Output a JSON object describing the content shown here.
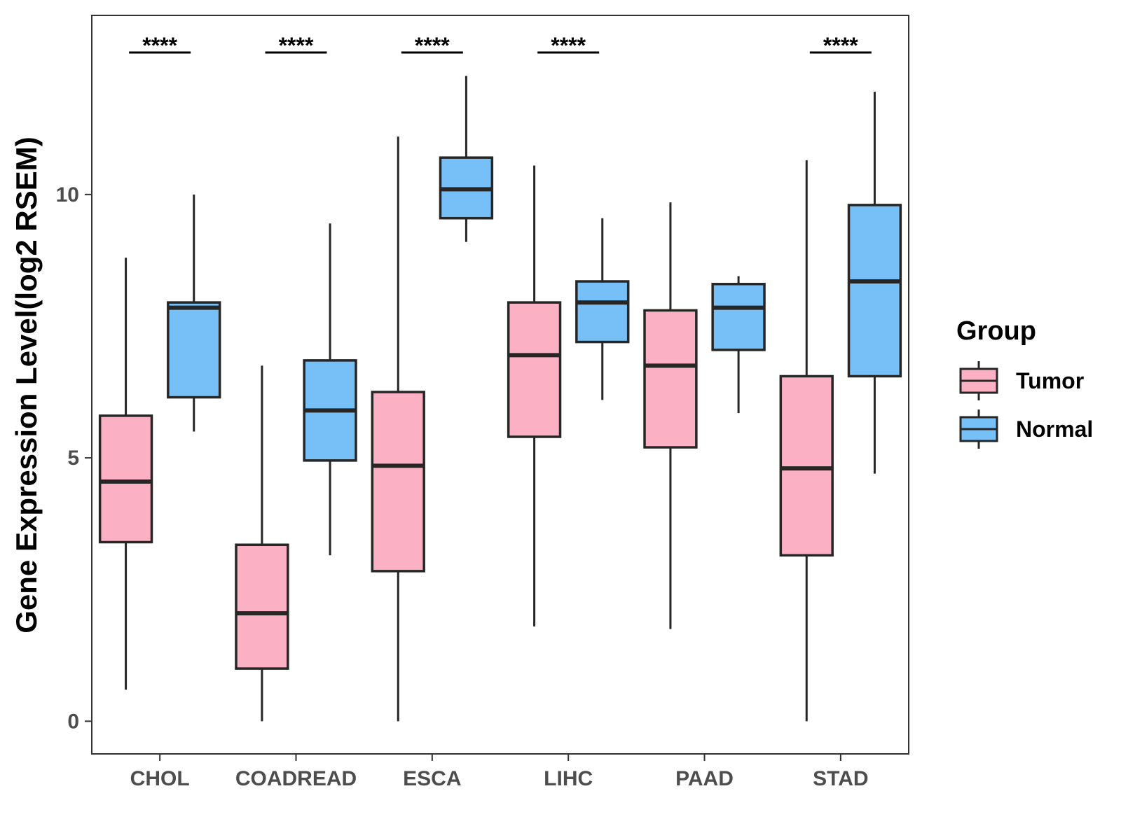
{
  "chart_data": {
    "type": "boxplot",
    "ylabel": "Gene Expression Level(log2 RSEM)",
    "xlabel": "",
    "ylim": [
      -0.62,
      13.4
    ],
    "yticks": [
      0,
      5,
      10
    ],
    "categories": [
      "CHOL",
      "COADREAD",
      "ESCA",
      "LIHC",
      "PAAD",
      "STAD"
    ],
    "legend": {
      "title": "Group",
      "position": "right",
      "entries": [
        {
          "name": "Tumor",
          "color": "#FBB1C3"
        },
        {
          "name": "Normal",
          "color": "#76C0F7"
        }
      ]
    },
    "series": [
      {
        "name": "Tumor",
        "color": "#FBB1C3",
        "boxes": [
          {
            "min": 0.6,
            "q1": 3.4,
            "median": 4.55,
            "q3": 5.8,
            "max": 8.8
          },
          {
            "min": 0.0,
            "q1": 1.0,
            "median": 2.05,
            "q3": 3.35,
            "max": 6.75
          },
          {
            "min": 0.0,
            "q1": 2.85,
            "median": 4.85,
            "q3": 6.25,
            "max": 11.1
          },
          {
            "min": 1.8,
            "q1": 5.4,
            "median": 6.95,
            "q3": 7.95,
            "max": 10.55
          },
          {
            "min": 1.75,
            "q1": 5.2,
            "median": 6.75,
            "q3": 7.8,
            "max": 9.85
          },
          {
            "min": 0.0,
            "q1": 3.15,
            "median": 4.8,
            "q3": 6.55,
            "max": 10.65
          }
        ]
      },
      {
        "name": "Normal",
        "color": "#76C0F7",
        "boxes": [
          {
            "min": 5.5,
            "q1": 6.15,
            "median": 7.85,
            "q3": 7.95,
            "max": 10.0
          },
          {
            "min": 3.15,
            "q1": 4.95,
            "median": 5.9,
            "q3": 6.85,
            "max": 9.45
          },
          {
            "min": 9.1,
            "q1": 9.55,
            "median": 10.1,
            "q3": 10.7,
            "max": 12.25
          },
          {
            "min": 6.1,
            "q1": 7.2,
            "median": 7.95,
            "q3": 8.35,
            "max": 9.55
          },
          {
            "min": 5.85,
            "q1": 7.05,
            "median": 7.85,
            "q3": 8.3,
            "max": 8.45
          },
          {
            "min": 4.7,
            "q1": 6.55,
            "median": 8.35,
            "q3": 9.8,
            "max": 11.95
          }
        ]
      }
    ],
    "significance": [
      {
        "category": "CHOL",
        "label": "****"
      },
      {
        "category": "COADREAD",
        "label": "****"
      },
      {
        "category": "ESCA",
        "label": "****"
      },
      {
        "category": "LIHC",
        "label": "****"
      },
      {
        "category": "STAD",
        "label": "****"
      }
    ]
  }
}
